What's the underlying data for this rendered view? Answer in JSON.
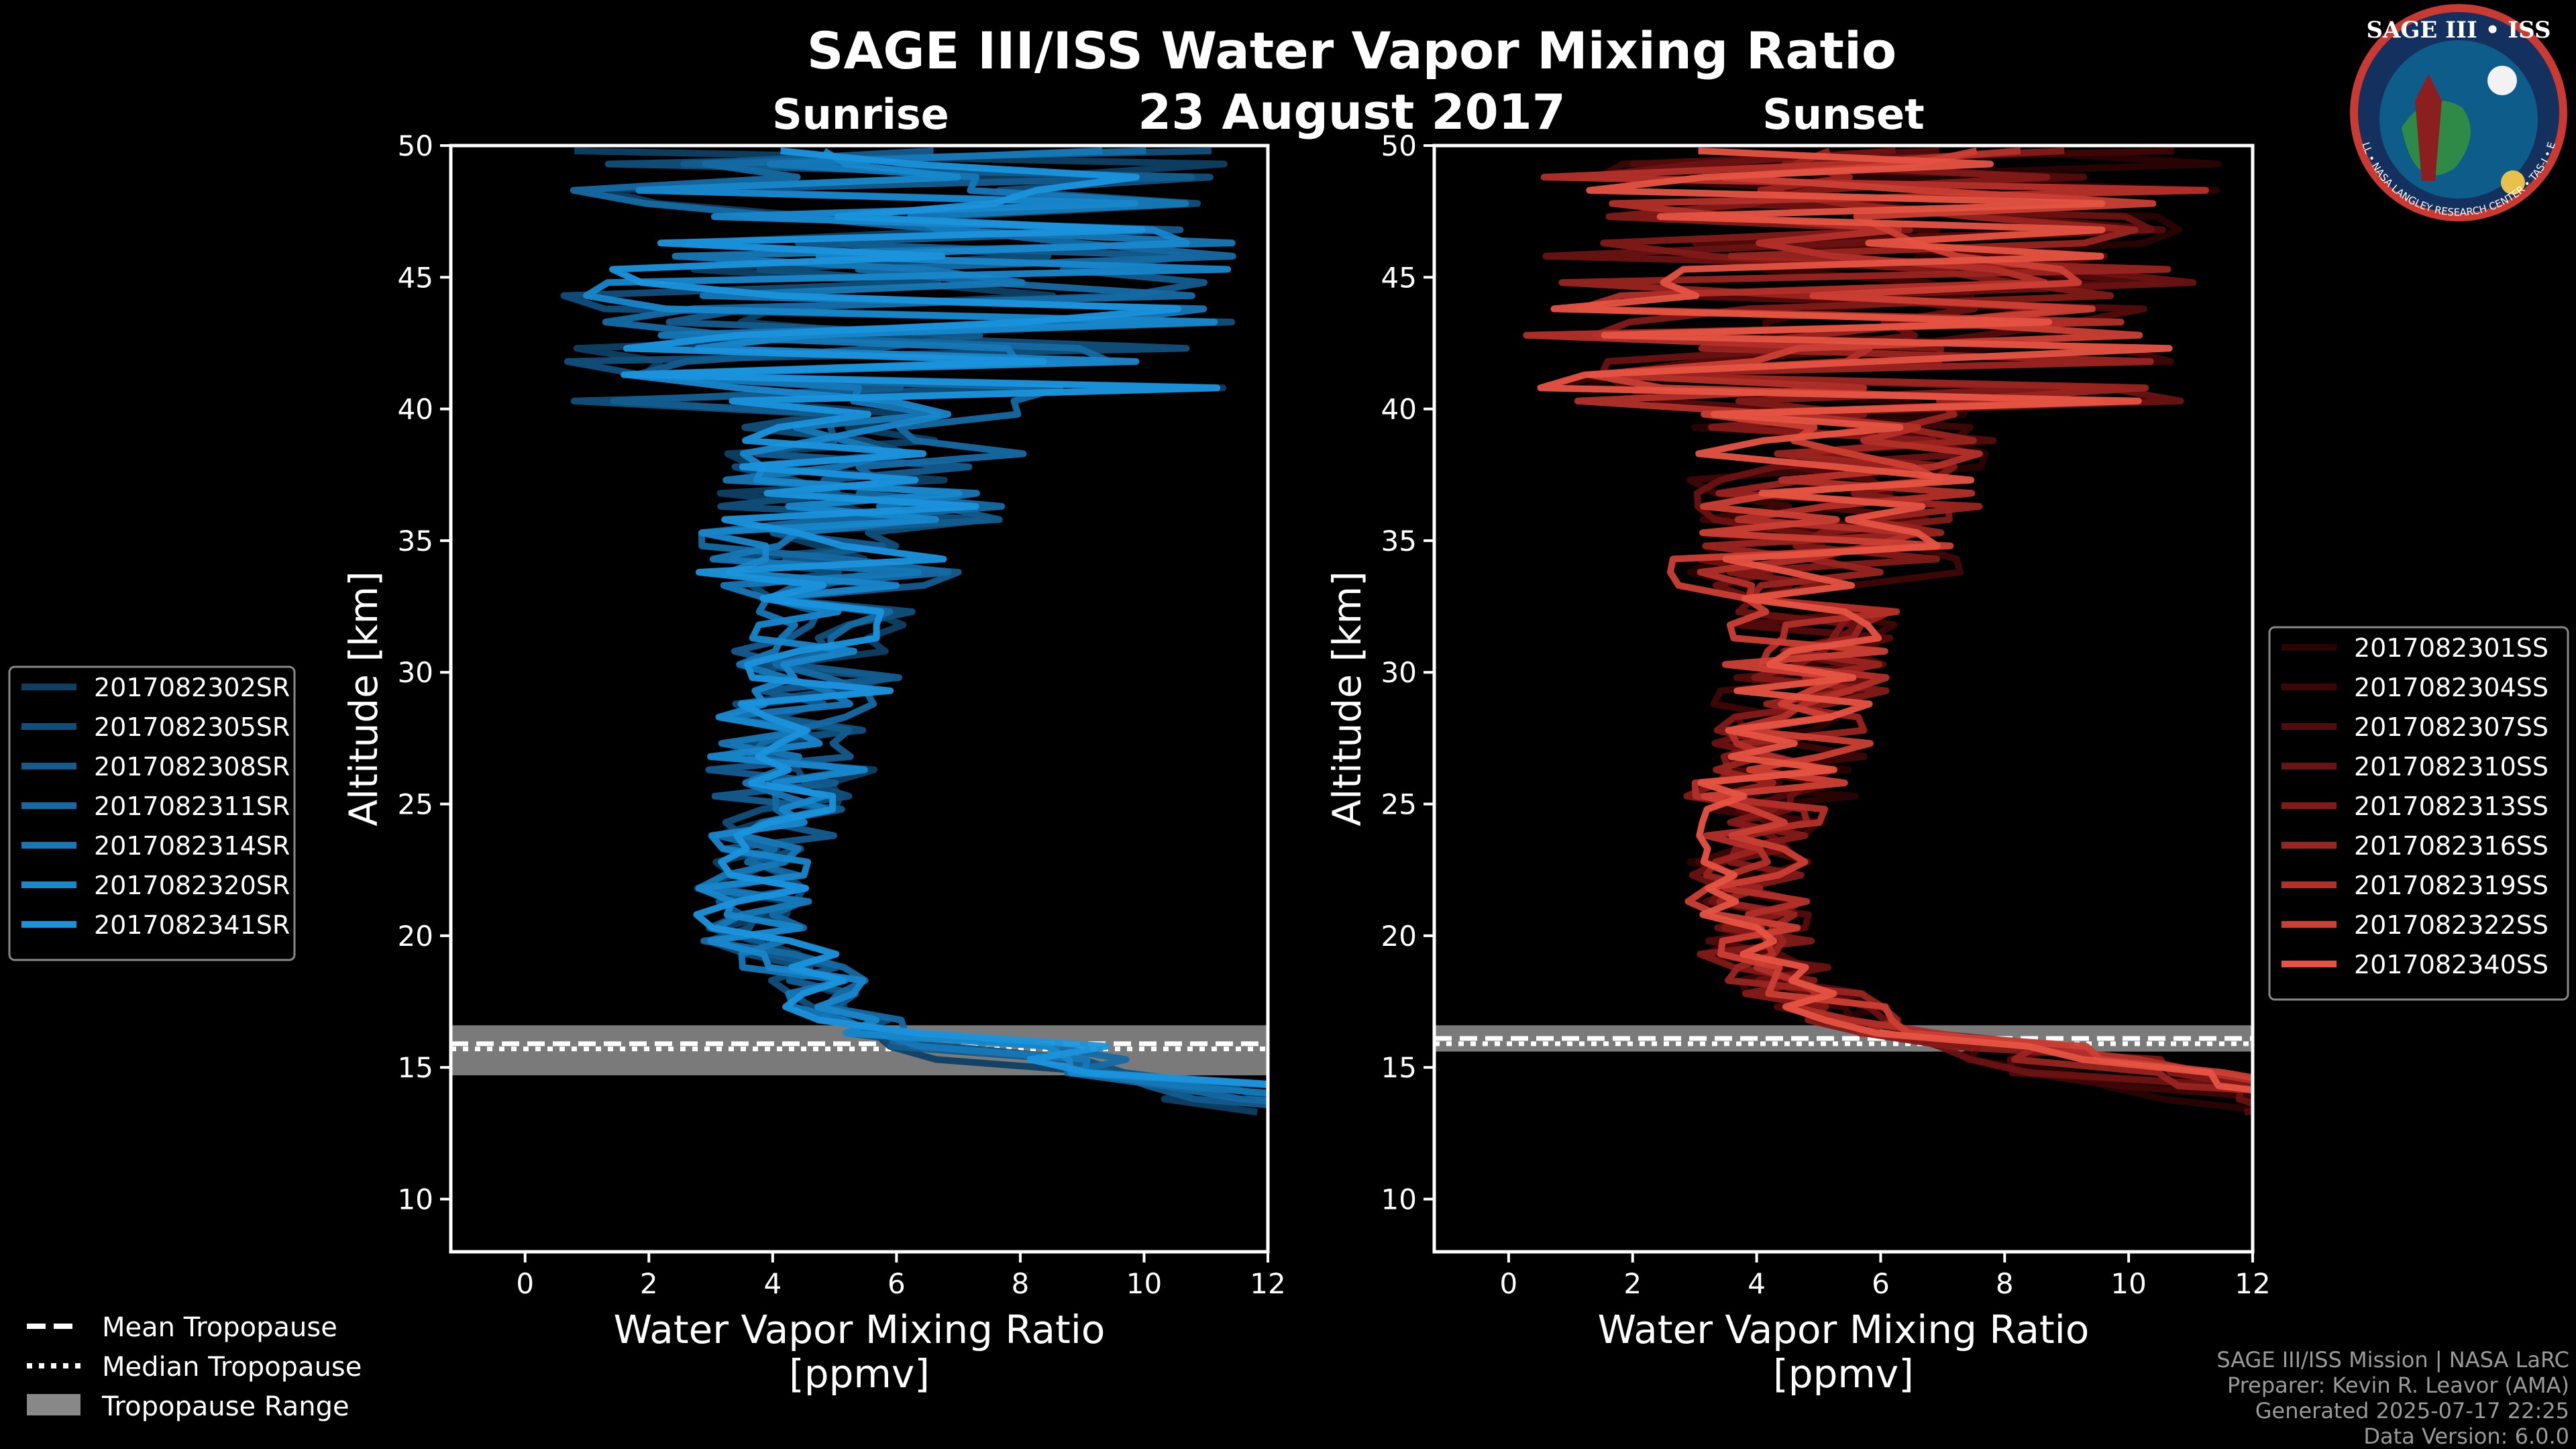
{
  "title": "SAGE III/ISS Water Vapor Mixing Ratio",
  "date": "23 August 2017",
  "logo": {
    "text": "SAGE III • ISS",
    "subtext": "BALL • NASA LANGLEY RESEARCH CENTER • TAS-I • ESA"
  },
  "credits": {
    "line1": "SAGE III/ISS Mission | NASA LaRC",
    "line2": "Preparer: Kevin R. Leavor (AMA)",
    "line3": "Generated 2025-07-17 22:25",
    "line4": "Data Version: 6.0.0"
  },
  "tropopause_legend": {
    "mean": "Mean Tropopause",
    "median": "Median Tropopause",
    "range": "Tropopause Range"
  },
  "chart_data": [
    {
      "type": "line",
      "panel": "Sunrise",
      "subtitle": "Sunrise",
      "xlabel_line1": "Water Vapor Mixing Ratio",
      "xlabel_line2": "[ppmv]",
      "ylabel": "Altitude [km]",
      "xlim": [
        -1.2,
        12
      ],
      "ylim": [
        8,
        50
      ],
      "xticks": [
        0,
        2,
        4,
        6,
        8,
        10,
        12
      ],
      "yticks": [
        10,
        15,
        20,
        25,
        30,
        35,
        40,
        45,
        50
      ],
      "tropopause": {
        "mean": 15.9,
        "median": 15.7,
        "range": [
          14.7,
          16.6
        ]
      },
      "colors": [
        "#0d3f63",
        "#114f7b",
        "#135c8e",
        "#156aa3",
        "#1678b7",
        "#1887cc",
        "#1a93dd"
      ],
      "series": [
        {
          "name": "2017082302SR",
          "seed": 11
        },
        {
          "name": "2017082305SR",
          "seed": 23
        },
        {
          "name": "2017082308SR",
          "seed": 37
        },
        {
          "name": "2017082311SR",
          "seed": 41
        },
        {
          "name": "2017082314SR",
          "seed": 53
        },
        {
          "name": "2017082320SR",
          "seed": 67
        },
        {
          "name": "2017082341SR",
          "seed": 79
        }
      ],
      "profile_mean": [
        {
          "alt": 13.5,
          "x": 12.5
        },
        {
          "alt": 14.5,
          "x": 9.5
        },
        {
          "alt": 15.5,
          "x": 7
        },
        {
          "alt": 16.5,
          "x": 5.6
        },
        {
          "alt": 17.5,
          "x": 5
        },
        {
          "alt": 18.5,
          "x": 4.4
        },
        {
          "alt": 20,
          "x": 3.8
        },
        {
          "alt": 22,
          "x": 3.7
        },
        {
          "alt": 25,
          "x": 4.2
        },
        {
          "alt": 28,
          "x": 4.5
        },
        {
          "alt": 31,
          "x": 4.8
        },
        {
          "alt": 35,
          "x": 5.2
        },
        {
          "alt": 40,
          "x": 5.8
        },
        {
          "alt": 45,
          "x": 6
        },
        {
          "alt": 50,
          "x": 6
        }
      ]
    },
    {
      "type": "line",
      "panel": "Sunset",
      "subtitle": "Sunset",
      "xlabel_line1": "Water Vapor Mixing Ratio",
      "xlabel_line2": "[ppmv]",
      "ylabel": "Altitude [km]",
      "xlim": [
        -1.2,
        12
      ],
      "ylim": [
        8,
        50
      ],
      "xticks": [
        0,
        2,
        4,
        6,
        8,
        10,
        12
      ],
      "yticks": [
        10,
        15,
        20,
        25,
        30,
        35,
        40,
        45,
        50
      ],
      "tropopause": {
        "mean": 16.1,
        "median": 15.9,
        "range": [
          15.6,
          16.6
        ]
      },
      "colors": [
        "#2a0303",
        "#3d0606",
        "#530b0b",
        "#6b1212",
        "#821a18",
        "#9a2420",
        "#b33029",
        "#cc3f34",
        "#e65342"
      ],
      "series": [
        {
          "name": "2017082301SS",
          "seed": 13
        },
        {
          "name": "2017082304SS",
          "seed": 29
        },
        {
          "name": "2017082307SS",
          "seed": 31
        },
        {
          "name": "2017082310SS",
          "seed": 43
        },
        {
          "name": "2017082313SS",
          "seed": 59
        },
        {
          "name": "2017082316SS",
          "seed": 61
        },
        {
          "name": "2017082319SS",
          "seed": 71
        },
        {
          "name": "2017082322SS",
          "seed": 83
        },
        {
          "name": "2017082340SS",
          "seed": 97
        }
      ],
      "profile_mean": [
        {
          "alt": 13.5,
          "x": 12.5
        },
        {
          "alt": 14.5,
          "x": 9.5
        },
        {
          "alt": 15.5,
          "x": 7.5
        },
        {
          "alt": 16.5,
          "x": 5.8
        },
        {
          "alt": 17.5,
          "x": 5
        },
        {
          "alt": 18.5,
          "x": 4.3
        },
        {
          "alt": 20,
          "x": 3.9
        },
        {
          "alt": 22,
          "x": 3.8
        },
        {
          "alt": 25,
          "x": 4.2
        },
        {
          "alt": 28,
          "x": 4.6
        },
        {
          "alt": 31,
          "x": 4.9
        },
        {
          "alt": 35,
          "x": 5.1
        },
        {
          "alt": 40,
          "x": 5.5
        },
        {
          "alt": 45,
          "x": 5.8
        },
        {
          "alt": 50,
          "x": 6
        }
      ]
    }
  ]
}
